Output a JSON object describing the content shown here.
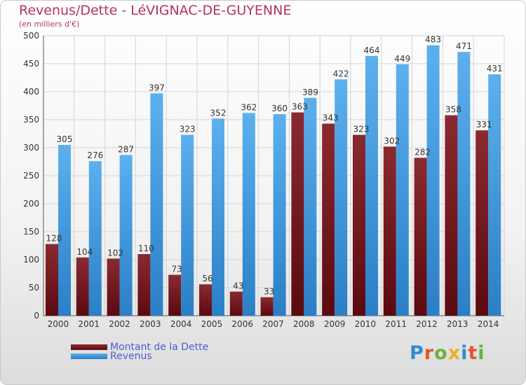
{
  "chart_data": {
    "type": "bar",
    "title": "Revenus/Dette - LéVIGNAC-DE-GUYENNE",
    "subtitle": "(en milliers d'€)",
    "categories": [
      "2000",
      "2001",
      "2002",
      "2003",
      "2004",
      "2005",
      "2006",
      "2007",
      "2008",
      "2009",
      "2010",
      "2011",
      "2012",
      "2013",
      "2014"
    ],
    "series": [
      {
        "name": "Montant de la Dette",
        "color": "#7a1f24",
        "values": [
          128,
          104,
          102,
          110,
          73,
          56,
          43,
          33,
          363,
          343,
          323,
          302,
          282,
          358,
          331
        ]
      },
      {
        "name": "Revenus",
        "color": "#3a99dd",
        "values": [
          305,
          276,
          287,
          397,
          323,
          352,
          362,
          360,
          389,
          422,
          464,
          449,
          483,
          471,
          431
        ]
      }
    ],
    "ylim": [
      0,
      500
    ],
    "yticks": [
      0,
      50,
      100,
      150,
      200,
      250,
      300,
      350,
      400,
      450,
      500
    ],
    "grid": true,
    "legend_position": "bottom-left"
  },
  "legend": {
    "debt_label": "Montant de la Dette",
    "revenue_label": "Revenus"
  },
  "logo": {
    "text": "Proxiti",
    "colors": [
      "#2f8dd0",
      "#e0572a",
      "#6cb13c",
      "#e9b020",
      "#2f8dd0",
      "#e0572a",
      "#6cb13c"
    ]
  }
}
